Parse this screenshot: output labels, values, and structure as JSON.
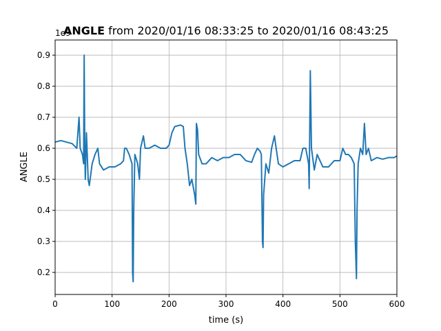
{
  "chart_data": {
    "type": "line",
    "title_bold": "ANGLE",
    "title": "from 2020/01/16 08:33:25 to 2020/01/16 08:43:25",
    "x_label": "time (s)",
    "y_label": "ANGLE",
    "y_offset_label": "1e9",
    "xlim": [
      0,
      600
    ],
    "xticks": [
      0,
      100,
      200,
      300,
      400,
      500,
      600
    ],
    "ylim": [
      0.129,
      0.949
    ],
    "yticks": [
      0.2,
      0.3,
      0.4,
      0.5,
      0.6,
      0.7,
      0.8,
      0.9
    ],
    "grid": true,
    "x": [
      0,
      10,
      20,
      30,
      38,
      42,
      44,
      48,
      50,
      51,
      52,
      53,
      55,
      58,
      60,
      65,
      70,
      75,
      78,
      85,
      95,
      105,
      115,
      120,
      122,
      125,
      130,
      135,
      136,
      137,
      138,
      140,
      145,
      148,
      150,
      155,
      158,
      165,
      175,
      185,
      195,
      200,
      205,
      210,
      220,
      225,
      228,
      232,
      236,
      240,
      245,
      247,
      248,
      250,
      252,
      258,
      265,
      275,
      285,
      295,
      305,
      315,
      325,
      335,
      345,
      350,
      355,
      360,
      362,
      364,
      365,
      366,
      370,
      375,
      380,
      385,
      388,
      392,
      400,
      410,
      420,
      430,
      435,
      440,
      445,
      446,
      448,
      450,
      455,
      460,
      465,
      470,
      480,
      490,
      500,
      505,
      510,
      515,
      520,
      525,
      527,
      529,
      530,
      532,
      536,
      540,
      543,
      546,
      550,
      555,
      565,
      575,
      585,
      595,
      600
    ],
    "series": [
      {
        "color": "#1f77b4",
        "values": [
          0.62,
          0.625,
          0.62,
          0.615,
          0.6,
          0.7,
          0.6,
          0.58,
          0.55,
          0.9,
          0.6,
          0.5,
          0.65,
          0.5,
          0.48,
          0.55,
          0.58,
          0.6,
          0.55,
          0.53,
          0.54,
          0.54,
          0.55,
          0.56,
          0.6,
          0.6,
          0.58,
          0.55,
          0.2,
          0.17,
          0.4,
          0.58,
          0.55,
          0.5,
          0.6,
          0.64,
          0.6,
          0.6,
          0.61,
          0.6,
          0.6,
          0.61,
          0.65,
          0.67,
          0.675,
          0.67,
          0.6,
          0.55,
          0.48,
          0.5,
          0.45,
          0.42,
          0.68,
          0.66,
          0.58,
          0.55,
          0.55,
          0.57,
          0.56,
          0.57,
          0.57,
          0.58,
          0.58,
          0.56,
          0.555,
          0.58,
          0.6,
          0.59,
          0.58,
          0.3,
          0.28,
          0.45,
          0.55,
          0.52,
          0.6,
          0.64,
          0.6,
          0.55,
          0.54,
          0.55,
          0.56,
          0.56,
          0.6,
          0.6,
          0.55,
          0.47,
          0.85,
          0.6,
          0.53,
          0.58,
          0.56,
          0.54,
          0.54,
          0.56,
          0.56,
          0.6,
          0.58,
          0.58,
          0.57,
          0.55,
          0.3,
          0.18,
          0.4,
          0.55,
          0.6,
          0.58,
          0.68,
          0.58,
          0.6,
          0.56,
          0.57,
          0.565,
          0.57,
          0.57,
          0.575
        ]
      }
    ]
  }
}
